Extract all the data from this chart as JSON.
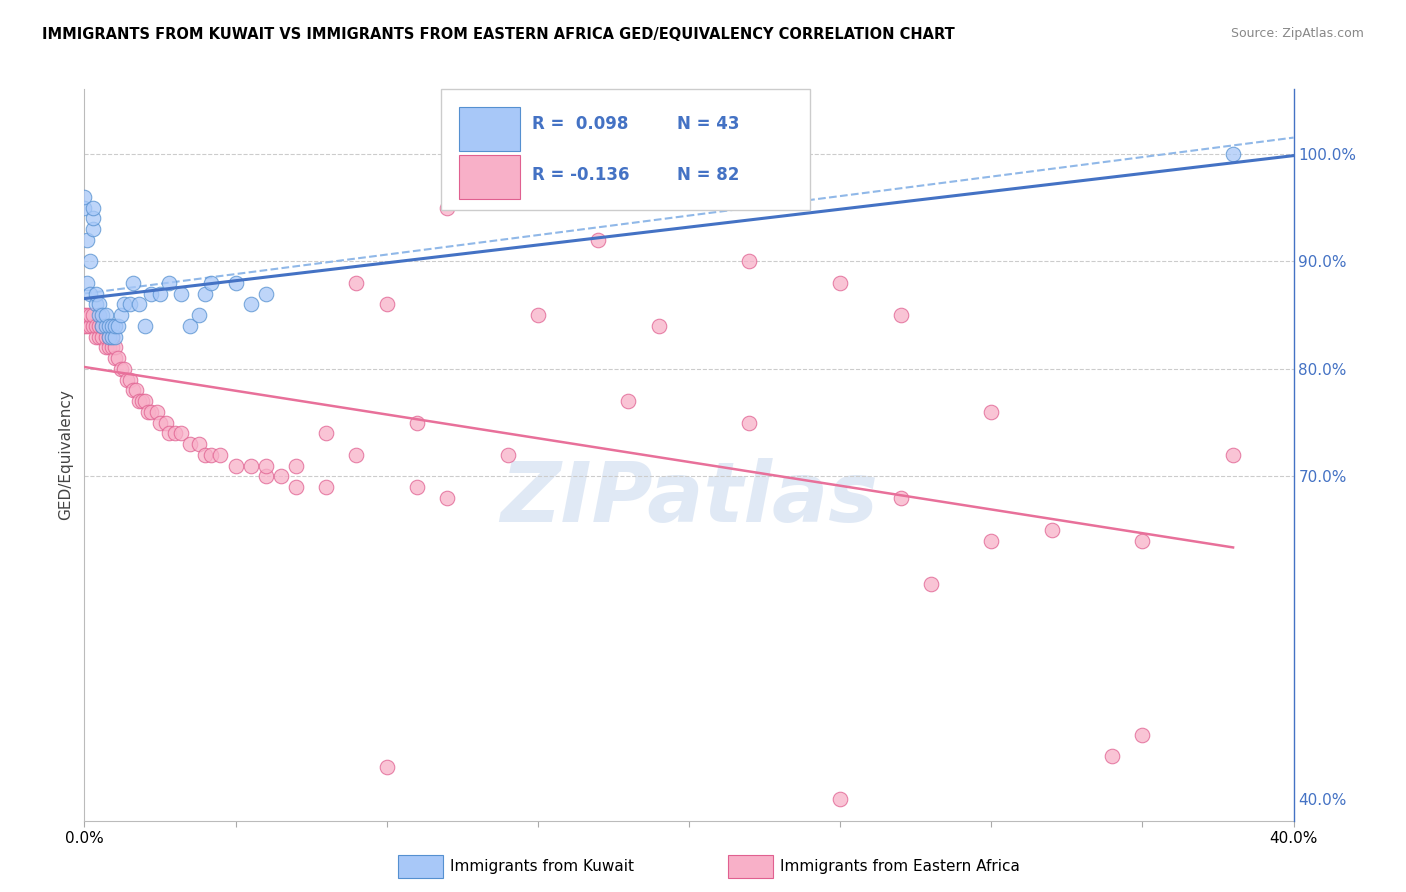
{
  "title": "IMMIGRANTS FROM KUWAIT VS IMMIGRANTS FROM EASTERN AFRICA GED/EQUIVALENCY CORRELATION CHART",
  "source": "Source: ZipAtlas.com",
  "ylabel": "GED/Equivalency",
  "right_yticks": [
    "100.0%",
    "90.0%",
    "80.0%",
    "70.0%",
    "40.0%"
  ],
  "right_ytick_vals": [
    1.0,
    0.9,
    0.8,
    0.7,
    0.4
  ],
  "xlim": [
    0.0,
    0.4
  ],
  "ylim": [
    0.38,
    1.06
  ],
  "legend_r1": "0.098",
  "legend_n1": "43",
  "legend_r2": "-0.136",
  "legend_n2": "82",
  "blue_fill": "#A8C8F8",
  "blue_edge": "#5590D0",
  "pink_fill": "#F8B0C8",
  "pink_edge": "#E06090",
  "blue_line": "#4472C4",
  "pink_line": "#E8709A",
  "blue_dash": "#90B8E8",
  "grid_color": "#CCCCCC",
  "watermark_color": "#C8D8EE",
  "kuwait_x": [
    0.0,
    0.0,
    0.001,
    0.001,
    0.002,
    0.002,
    0.003,
    0.003,
    0.003,
    0.004,
    0.004,
    0.005,
    0.005,
    0.006,
    0.006,
    0.007,
    0.007,
    0.008,
    0.008,
    0.009,
    0.009,
    0.01,
    0.01,
    0.011,
    0.012,
    0.013,
    0.015,
    0.016,
    0.018,
    0.02,
    0.022,
    0.025,
    0.028,
    0.032,
    0.035,
    0.038,
    0.04,
    0.042,
    0.05,
    0.055,
    0.06,
    0.21,
    0.38
  ],
  "kuwait_y": [
    0.95,
    0.96,
    0.88,
    0.92,
    0.87,
    0.9,
    0.93,
    0.94,
    0.95,
    0.86,
    0.87,
    0.85,
    0.86,
    0.84,
    0.85,
    0.84,
    0.85,
    0.83,
    0.84,
    0.83,
    0.84,
    0.83,
    0.84,
    0.84,
    0.85,
    0.86,
    0.86,
    0.88,
    0.86,
    0.84,
    0.87,
    0.87,
    0.88,
    0.87,
    0.84,
    0.85,
    0.87,
    0.88,
    0.88,
    0.86,
    0.87,
    0.96,
    1.0
  ],
  "eastern_africa_x": [
    0.0,
    0.0,
    0.001,
    0.001,
    0.002,
    0.002,
    0.003,
    0.003,
    0.004,
    0.004,
    0.005,
    0.005,
    0.006,
    0.006,
    0.007,
    0.007,
    0.008,
    0.008,
    0.009,
    0.009,
    0.01,
    0.01,
    0.011,
    0.012,
    0.013,
    0.014,
    0.015,
    0.016,
    0.017,
    0.018,
    0.019,
    0.02,
    0.021,
    0.022,
    0.024,
    0.025,
    0.027,
    0.028,
    0.03,
    0.032,
    0.035,
    0.038,
    0.04,
    0.042,
    0.045,
    0.05,
    0.055,
    0.06,
    0.065,
    0.07,
    0.08,
    0.09,
    0.1,
    0.11,
    0.12,
    0.13,
    0.15,
    0.17,
    0.19,
    0.22,
    0.25,
    0.27,
    0.3,
    0.35,
    0.38,
    0.22,
    0.27,
    0.32,
    0.09,
    0.12,
    0.06,
    0.08,
    0.11,
    0.14,
    0.07,
    0.1,
    0.34,
    0.25,
    0.18,
    0.35,
    0.28,
    0.3
  ],
  "eastern_africa_y": [
    0.84,
    0.85,
    0.84,
    0.85,
    0.84,
    0.85,
    0.84,
    0.85,
    0.83,
    0.84,
    0.83,
    0.84,
    0.83,
    0.84,
    0.82,
    0.83,
    0.82,
    0.83,
    0.82,
    0.83,
    0.81,
    0.82,
    0.81,
    0.8,
    0.8,
    0.79,
    0.79,
    0.78,
    0.78,
    0.77,
    0.77,
    0.77,
    0.76,
    0.76,
    0.76,
    0.75,
    0.75,
    0.74,
    0.74,
    0.74,
    0.73,
    0.73,
    0.72,
    0.72,
    0.72,
    0.71,
    0.71,
    0.7,
    0.7,
    0.69,
    0.69,
    0.88,
    0.86,
    0.75,
    0.95,
    0.96,
    0.85,
    0.92,
    0.84,
    0.9,
    0.88,
    0.85,
    0.76,
    0.64,
    0.72,
    0.75,
    0.68,
    0.65,
    0.72,
    0.68,
    0.71,
    0.74,
    0.69,
    0.72,
    0.71,
    0.43,
    0.44,
    0.4,
    0.77,
    0.46,
    0.6,
    0.64
  ]
}
